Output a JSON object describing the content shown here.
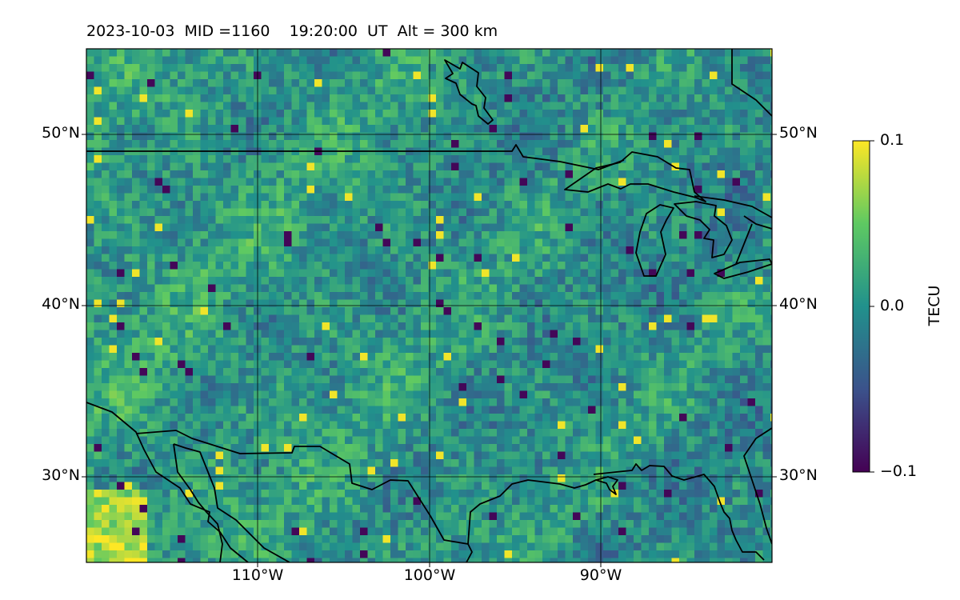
{
  "header": {
    "title": "2023-10-03  MID =1160    19:20:00  UT  Alt = 300 km"
  },
  "map": {
    "projection": "Plate Carree",
    "lon_range": [
      -120,
      -80
    ],
    "lat_range": [
      25,
      55
    ],
    "lat_ticks": [
      {
        "value": 50,
        "label": "50°N"
      },
      {
        "value": 40,
        "label": "40°N"
      },
      {
        "value": 30,
        "label": "30°N"
      }
    ],
    "lon_ticks": [
      {
        "value": -110,
        "label": "110°W"
      },
      {
        "value": -100,
        "label": "100°W"
      },
      {
        "value": -90,
        "label": "90°W"
      }
    ],
    "gridlines": true,
    "coastlines": true,
    "borders": true,
    "field": "TEC perturbation (detrended)",
    "colormap": "viridis"
  },
  "colorbar": {
    "label": "TECU",
    "vmin": -0.1,
    "vmax": 0.1,
    "ticks": [
      {
        "value": 0.1,
        "label": "0.1"
      },
      {
        "value": 0.0,
        "label": "0.0"
      },
      {
        "value": -0.1,
        "label": "−0.1"
      }
    ],
    "colors": [
      "#440154",
      "#3b528b",
      "#21918c",
      "#5ec962",
      "#fde725"
    ]
  }
}
